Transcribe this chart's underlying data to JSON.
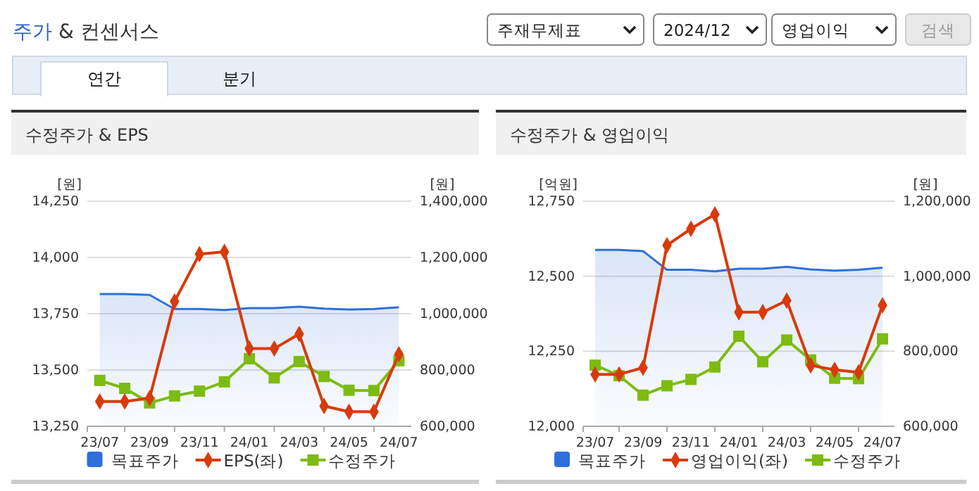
{
  "chart_data": [
    {
      "type": "other",
      "title": "주가 & 컨센서스",
      "annotations": [
        "주재무제표",
        "2024/12",
        "영업이익",
        "검색",
        "연간",
        "분기"
      ]
    },
    {
      "type": "line",
      "title": "수정주가 & EPS",
      "ylabel": "[원]",
      "y2label": "[원]",
      "categories": [
        "23/07",
        null,
        "23/09",
        null,
        "23/11",
        null,
        "24/01",
        null,
        "24/03",
        null,
        "24/05",
        null,
        "24/07"
      ],
      "series": [
        {
          "name": "목표주가",
          "type": "area",
          "axis": "y2",
          "color": "#2f6fd8",
          "marker": "none",
          "values": [
            1070000,
            1070000,
            1067000,
            1017000,
            1017000,
            1013000,
            1020000,
            1020000,
            1025000,
            1018000,
            1015000,
            1017000,
            1023000
          ]
        },
        {
          "name": "EPS(좌)",
          "type": "line",
          "color": "#d83a0c",
          "marker": "diamond",
          "values": [
            13360,
            13360,
            13375,
            13805,
            14015,
            14025,
            13595,
            13595,
            13660,
            13340,
            13315,
            13315,
            13570
          ]
        },
        {
          "name": "수정주가",
          "type": "line",
          "axis": "y2",
          "color": "#7dbb12",
          "marker": "square",
          "values": [
            763000,
            735000,
            683000,
            708000,
            725000,
            758000,
            840000,
            772000,
            830000,
            777000,
            728000,
            727000,
            833000
          ]
        }
      ],
      "ylim": [
        13250,
        14250
      ],
      "yticks": [
        {
          "value": 13250,
          "label": "13,250"
        },
        {
          "value": 13500,
          "label": "13,500"
        },
        {
          "value": 13750,
          "label": "13,750"
        },
        {
          "value": 14000,
          "label": "14,000"
        },
        {
          "value": 14250,
          "label": "14,250"
        }
      ],
      "y2lim": [
        600000,
        1400000
      ],
      "y2ticks": [
        {
          "value": 600000,
          "label": "600,000"
        },
        {
          "value": 800000,
          "label": "800,000"
        },
        {
          "value": 1000000,
          "label": "1,000,000"
        },
        {
          "value": 1200000,
          "label": "1,200,000"
        },
        {
          "value": 1400000,
          "label": "1,400,000"
        }
      ],
      "grid": "y",
      "legend": "bottom"
    },
    {
      "type": "line",
      "title": "수정주가 & 영업이익",
      "ylabel": "[억원]",
      "y2label": "[원]",
      "categories": [
        "23/07",
        null,
        "23/09",
        null,
        "23/11",
        null,
        "24/01",
        null,
        "24/03",
        null,
        "24/05",
        null,
        "24/07"
      ],
      "series": [
        {
          "name": "목표주가",
          "type": "area",
          "axis": "y2",
          "color": "#2f6fd8",
          "marker": "none",
          "values": [
            1070000,
            1070000,
            1067000,
            1017000,
            1017000,
            1013000,
            1020000,
            1020000,
            1025000,
            1018000,
            1015000,
            1017000,
            1023000
          ]
        },
        {
          "name": "영업이익(좌)",
          "type": "line",
          "color": "#d83a0c",
          "marker": "diamond",
          "values": [
            12173,
            12173,
            12195,
            12603,
            12658,
            12706,
            12380,
            12380,
            12419,
            12203,
            12188,
            12180,
            12403
          ]
        },
        {
          "name": "수정주가",
          "type": "line",
          "axis": "y2",
          "color": "#7dbb12",
          "marker": "square",
          "values": [
            763000,
            735000,
            683000,
            708000,
            725000,
            758000,
            840000,
            772000,
            830000,
            777000,
            728000,
            727000,
            833000
          ]
        }
      ],
      "ylim": [
        12000,
        12750
      ],
      "yticks": [
        {
          "value": 12000,
          "label": "12,000"
        },
        {
          "value": 12250,
          "label": "12,250"
        },
        {
          "value": 12500,
          "label": "12,500"
        },
        {
          "value": 12750,
          "label": "12,750"
        }
      ],
      "y2lim": [
        600000,
        1200000
      ],
      "y2ticks": [
        {
          "value": 600000,
          "label": "600,000"
        },
        {
          "value": 800000,
          "label": "800,000"
        },
        {
          "value": 1000000,
          "label": "1,000,000"
        },
        {
          "value": 1200000,
          "label": "1,200,000"
        }
      ],
      "grid": "y",
      "legend": "bottom"
    }
  ]
}
